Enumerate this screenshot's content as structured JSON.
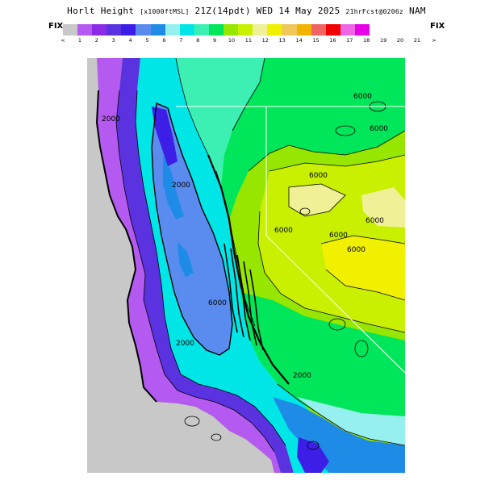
{
  "header": {
    "title_main": "Horlt Height",
    "title_units": "[x1000ftMSL]",
    "title_valid": "21Z(14pdt) WED 14 May 2025",
    "title_fcst": "21hrFcst@0206z",
    "title_model": "NAM"
  },
  "legend": {
    "fix_left": "FIX",
    "fix_right": "FIX",
    "colors": [
      "#c8c8c8",
      "#b45af0",
      "#8c2be6",
      "#5b32e0",
      "#3c1ee6",
      "#5a8cf0",
      "#1e8ce6",
      "#96f0f0",
      "#00e6e6",
      "#3cf0b4",
      "#00e65a",
      "#96e600",
      "#c8f000",
      "#f0f096",
      "#f0f000",
      "#f0c85a",
      "#f0b400",
      "#f06464",
      "#f00000",
      "#f064e6",
      "#e600e6"
    ],
    "ticks": [
      "<",
      "1",
      "2",
      "3",
      "4",
      "5",
      "6",
      "7",
      "8",
      "9",
      "10",
      "11",
      "12",
      "13",
      "14",
      "15",
      "16",
      "17",
      "18",
      "19",
      "20",
      "21",
      ">"
    ]
  },
  "map": {
    "land_colors": {
      "ocean": "#c8c8c8",
      "lowest": "#b45af0",
      "low_purple": "#8c2be6",
      "blue_violet": "#5b32e0",
      "deep_blue": "#3c1ee6",
      "sky_blue": "#5a8cf0",
      "azure": "#1e8ce6",
      "cyan_light": "#96f0f0",
      "cyan": "#00e6e6",
      "aqua_green": "#3cf0b4",
      "green": "#00e65a",
      "yellow_green": "#96e600",
      "lime": "#c8f000",
      "pale_yellow": "#f0f096",
      "yellow": "#f0f000"
    },
    "contour_labels": [
      "6000",
      "6000",
      "6000",
      "6000",
      "6000",
      "6000",
      "6000",
      "6000",
      "2000",
      "2000",
      "2000",
      "2000"
    ]
  }
}
